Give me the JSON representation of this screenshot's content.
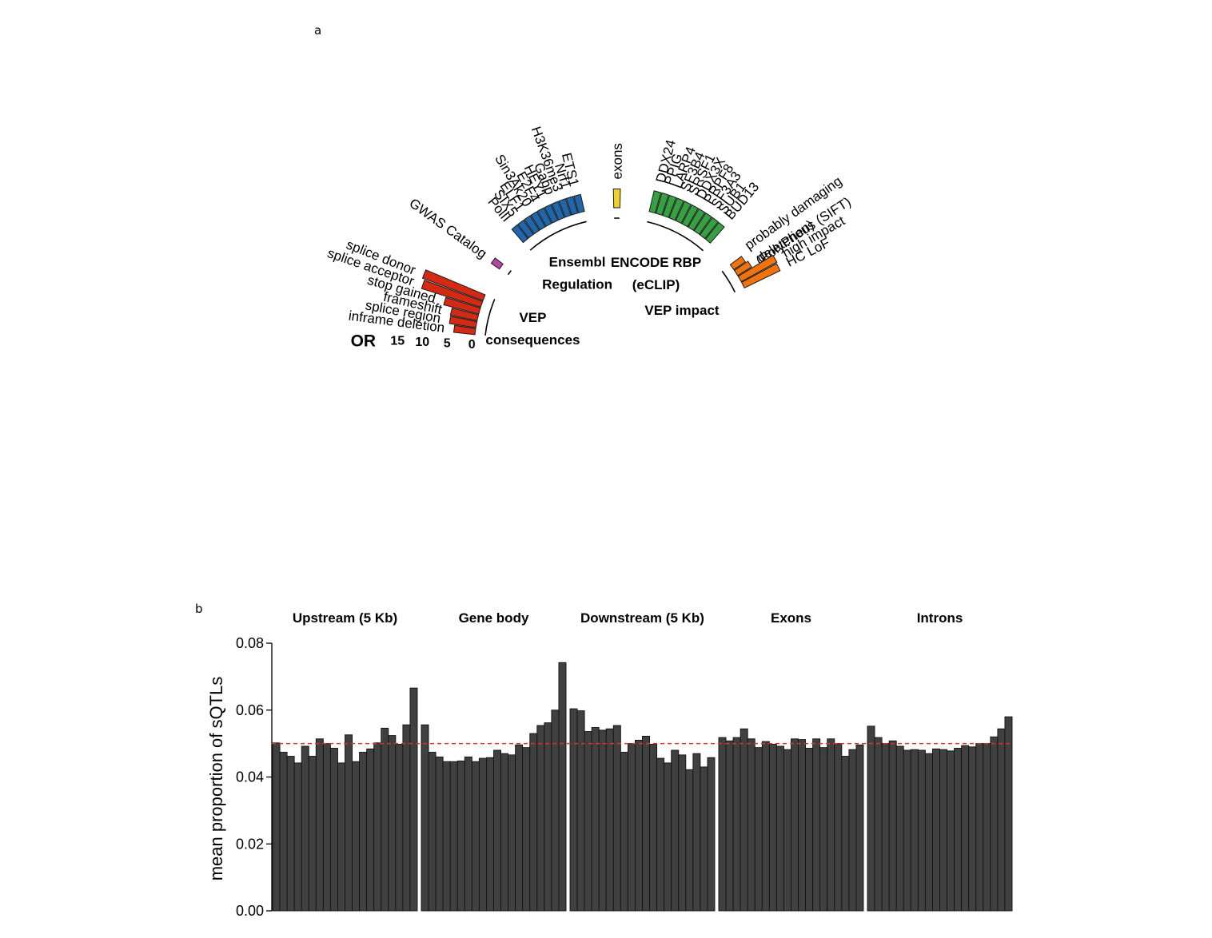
{
  "panel_a": {
    "letter": "a"
  },
  "panel_b": {
    "letter": "b"
  },
  "chart_data": [
    {
      "type": "bar",
      "layout": "circular",
      "or_axis": {
        "label": "OR",
        "ticks": [
          0,
          5,
          10,
          15
        ]
      },
      "groups": [
        {
          "name": "VEP consequences",
          "name_lines": [
            "VEP",
            "consequences"
          ],
          "color": "#d42a14",
          "categories": [
            "inframe deletion",
            "splice region",
            "frameshift",
            "stop gained",
            "splice acceptor",
            "splice donor"
          ],
          "values": [
            4.3,
            5.4,
            5.5,
            7.3,
            12.5,
            13.0
          ]
        },
        {
          "name": "GWAS Catalog",
          "name_lines": [],
          "color": "#b844a8",
          "categories": [
            "GWAS Catalog"
          ],
          "values": [
            2.0
          ]
        },
        {
          "name": "Ensembl Regulation",
          "name_lines": [
            "Ensembl",
            "Regulation"
          ],
          "color": "#1f66ad",
          "categories": [
            "PolII",
            "SIX5",
            "ELF1",
            "Sin3Ak20",
            "E2F4",
            "HEY1",
            "Gabp",
            "H3K36me3",
            "Nrf1",
            "ETS1"
          ],
          "values": [
            3.5,
            3.5,
            3.5,
            3.5,
            3.5,
            3.5,
            3.5,
            3.5,
            3.5,
            3.5
          ]
        },
        {
          "name": "exons",
          "name_lines": [],
          "color": "#f0d02a",
          "categories": [
            "exons"
          ],
          "values": [
            3.8
          ]
        },
        {
          "name": "ENCODE RBP (eCLIP)",
          "name_lines": [
            "ENCODE RBP",
            "(eCLIP)"
          ],
          "color": "#35a140",
          "categories": [
            "DDX24",
            "PPIG",
            "LARP4",
            "SF3B4",
            "SRSF1",
            "DDX3X",
            "PRPF8",
            "SF3A3",
            "SUB1",
            "BUD13"
          ],
          "values": [
            4.3,
            4.3,
            4.3,
            4.3,
            4.3,
            4.3,
            4.3,
            4.3,
            4.3,
            4.3
          ]
        },
        {
          "name": "VEP impact",
          "name_lines": [
            "VEP impact"
          ],
          "color": "#f0730f",
          "categories": [
            "probably damaging (PolyPhen)",
            "deleterious (SIFT)",
            "high impact",
            "HC LoF"
          ],
          "category_lines": [
            [
              "probably damaging",
              "(PolyPhen)"
            ],
            [
              "deleterious (SIFT)"
            ],
            [
              "high impact"
            ],
            [
              "HC LoF"
            ]
          ],
          "values": [
            2.8,
            3.3,
            8.2,
            8.0
          ]
        }
      ]
    },
    {
      "type": "bar",
      "ylabel": "mean proportion of sQTLs",
      "ylim": [
        0,
        0.08
      ],
      "yticks": [
        0.0,
        0.02,
        0.04,
        0.06,
        0.08
      ],
      "ytick_labels": [
        "0.00",
        "0.02",
        "0.04",
        "0.06",
        "0.08"
      ],
      "reference_line": 0.05,
      "bar_color": "#404040",
      "reference_color": "#e03030",
      "regions": [
        {
          "name": "Upstream (5 Kb)",
          "values": [
            0.0502,
            0.0474,
            0.0462,
            0.0442,
            0.0492,
            0.0462,
            0.0514,
            0.05,
            0.0486,
            0.0442,
            0.0526,
            0.0446,
            0.0474,
            0.0484,
            0.0502,
            0.0546,
            0.0524,
            0.0498,
            0.0556,
            0.0666
          ]
        },
        {
          "name": "Gene body",
          "values": [
            0.0556,
            0.0474,
            0.046,
            0.0446,
            0.0446,
            0.0448,
            0.046,
            0.0446,
            0.0456,
            0.0458,
            0.048,
            0.047,
            0.0466,
            0.0496,
            0.0488,
            0.053,
            0.0554,
            0.0562,
            0.06,
            0.0742
          ]
        },
        {
          "name": "Downstream (5 Kb)",
          "values": [
            0.0604,
            0.0598,
            0.0536,
            0.0548,
            0.054,
            0.0544,
            0.0554,
            0.0474,
            0.05,
            0.051,
            0.0522,
            0.0498,
            0.0456,
            0.0442,
            0.048,
            0.0466,
            0.0422,
            0.047,
            0.043,
            0.0458
          ]
        },
        {
          "name": "Exons",
          "values": [
            0.0518,
            0.0508,
            0.0518,
            0.0544,
            0.0514,
            0.0488,
            0.0506,
            0.0498,
            0.0492,
            0.0482,
            0.0514,
            0.0512,
            0.0486,
            0.0514,
            0.0488,
            0.0514,
            0.05,
            0.0462,
            0.0482,
            0.0496
          ]
        },
        {
          "name": "Introns",
          "values": [
            0.0552,
            0.0518,
            0.05,
            0.0508,
            0.0492,
            0.048,
            0.0482,
            0.048,
            0.047,
            0.0484,
            0.0482,
            0.0478,
            0.0486,
            0.0494,
            0.049,
            0.05,
            0.05,
            0.052,
            0.0544,
            0.058
          ]
        }
      ]
    }
  ]
}
